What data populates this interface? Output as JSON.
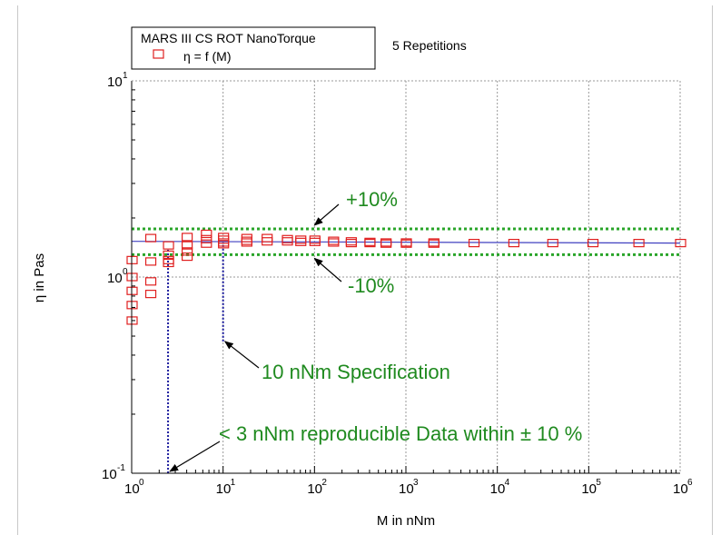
{
  "chart_data": {
    "type": "scatter",
    "xscale": "log",
    "yscale": "log",
    "xlim": [
      1,
      1000000
    ],
    "ylim": [
      0.1,
      10
    ],
    "xlabel": "M in nNm",
    "ylabel": "η in Pas",
    "x_ticks": [
      {
        "base": "10",
        "exp": "0"
      },
      {
        "base": "10",
        "exp": "1"
      },
      {
        "base": "10",
        "exp": "2"
      },
      {
        "base": "10",
        "exp": "3"
      },
      {
        "base": "10",
        "exp": "4"
      },
      {
        "base": "10",
        "exp": "5"
      },
      {
        "base": "10",
        "exp": "6"
      }
    ],
    "y_ticks": [
      {
        "base": "10",
        "exp": "-1"
      },
      {
        "base": "10",
        "exp": "0"
      },
      {
        "base": "10",
        "exp": "1"
      }
    ],
    "grid": true,
    "legend": {
      "position": "top-left",
      "title": "MARS III CS ROT NanoTorque",
      "entry": "η = f (M)",
      "note": "5 Repetitions"
    },
    "series": [
      {
        "name": "η = f (M)",
        "marker": "open-square",
        "color": "#e02020",
        "points": [
          [
            1.0,
            1.22
          ],
          [
            1.0,
            1.0
          ],
          [
            1.0,
            0.85
          ],
          [
            1.0,
            0.72
          ],
          [
            1.0,
            0.6
          ],
          [
            1.6,
            1.58
          ],
          [
            1.6,
            1.2
          ],
          [
            1.6,
            0.95
          ],
          [
            1.6,
            0.82
          ],
          [
            2.5,
            1.45
          ],
          [
            2.5,
            1.3
          ],
          [
            2.5,
            1.22
          ],
          [
            2.5,
            1.18
          ],
          [
            4.0,
            1.6
          ],
          [
            4.0,
            1.45
          ],
          [
            4.0,
            1.35
          ],
          [
            4.0,
            1.27
          ],
          [
            6.5,
            1.66
          ],
          [
            6.5,
            1.56
          ],
          [
            6.5,
            1.48
          ],
          [
            10,
            1.6
          ],
          [
            10,
            1.55
          ],
          [
            10,
            1.5
          ],
          [
            10,
            1.47
          ],
          [
            18,
            1.58
          ],
          [
            18,
            1.53
          ],
          [
            18,
            1.5
          ],
          [
            30,
            1.58
          ],
          [
            30,
            1.52
          ],
          [
            50,
            1.56
          ],
          [
            50,
            1.52
          ],
          [
            70,
            1.55
          ],
          [
            70,
            1.51
          ],
          [
            100,
            1.55
          ],
          [
            100,
            1.51
          ],
          [
            160,
            1.53
          ],
          [
            160,
            1.5
          ],
          [
            250,
            1.52
          ],
          [
            250,
            1.49
          ],
          [
            400,
            1.51
          ],
          [
            400,
            1.49
          ],
          [
            600,
            1.5
          ],
          [
            600,
            1.48
          ],
          [
            1000,
            1.5
          ],
          [
            1000,
            1.48
          ],
          [
            2000,
            1.5
          ],
          [
            2000,
            1.48
          ],
          [
            5500,
            1.49
          ],
          [
            15000,
            1.49
          ],
          [
            40000,
            1.49
          ],
          [
            110000,
            1.49
          ],
          [
            350000,
            1.49
          ],
          [
            1000000,
            1.49
          ]
        ]
      },
      {
        "name": "fit",
        "kind": "line",
        "color": "#4040c0",
        "points": [
          [
            1,
            1.52
          ],
          [
            1000000,
            1.49
          ]
        ]
      }
    ],
    "reference_lines": [
      {
        "label": "+10%",
        "y": 1.76,
        "color": "#2aa52a",
        "style": "dotted"
      },
      {
        "label": "-10%",
        "y": 1.3,
        "color": "#2aa52a",
        "style": "dotted"
      }
    ],
    "vertical_markers": [
      {
        "x": 2.5,
        "color": "#2020a0",
        "style": "dotted",
        "from_y": 0.1,
        "to_y": 1.4
      },
      {
        "x": 10,
        "color": "#2020a0",
        "style": "dotted",
        "from_y": 0.47,
        "to_y": 1.5
      }
    ],
    "annotations": [
      {
        "text": "+10%",
        "target": [
          100,
          1.76
        ]
      },
      {
        "text": "-10%",
        "target": [
          100,
          1.3
        ]
      },
      {
        "text": "10 nNm Specification",
        "target": [
          10,
          0.47
        ]
      },
      {
        "text": "< 3 nNm reproducible Data within ± 10 %",
        "target": [
          2.5,
          0.1
        ]
      }
    ]
  }
}
